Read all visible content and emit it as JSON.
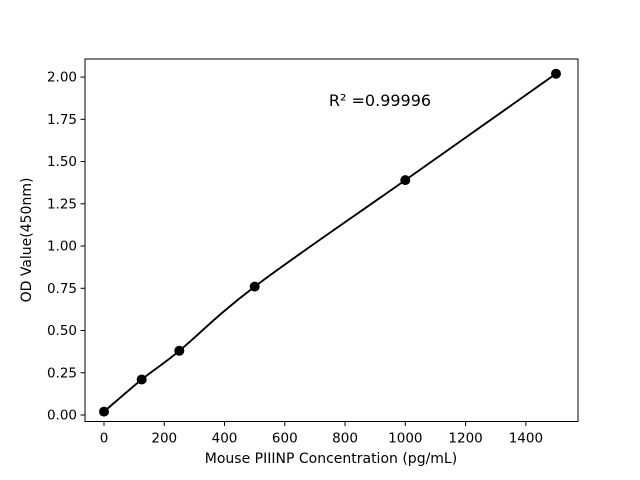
{
  "chart_data": {
    "type": "line",
    "title": "",
    "xlabel": "Mouse PIIINP Concentration (pg/mL)",
    "ylabel": "OD Value(450nm)",
    "annotation": "R² =0.99996",
    "r_squared": 0.99996,
    "x": [
      0,
      125,
      250,
      500,
      1000,
      1500
    ],
    "y": [
      0.02,
      0.21,
      0.38,
      0.76,
      1.39,
      2.02
    ],
    "xticks": [
      0,
      200,
      400,
      600,
      800,
      1000,
      1200,
      1400
    ],
    "xtick_labels": [
      "0",
      "200",
      "400",
      "600",
      "800",
      "1000",
      "1200",
      "1400"
    ],
    "yticks": [
      0,
      0.25,
      0.5,
      0.75,
      1.0,
      1.25,
      1.5,
      1.75,
      2.0
    ],
    "ytick_labels": [
      "0.00",
      "0.25",
      "0.50",
      "0.75",
      "1.00",
      "1.25",
      "1.50",
      "1.75",
      "2.00"
    ],
    "xlim": [
      -63,
      1573
    ],
    "ylim": [
      -0.0385,
      2.107
    ],
    "grid": false,
    "legend": null,
    "line_color": "#000000",
    "marker_color": "#000000",
    "axis_color": "#000000",
    "background_color": "#ffffff"
  }
}
